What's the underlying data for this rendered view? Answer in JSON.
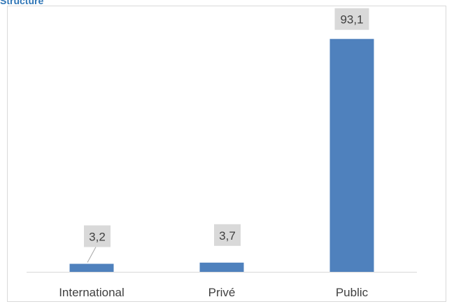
{
  "title": "Structure",
  "colors": {
    "title": "#2E75B6",
    "bar": "#4F81BD",
    "label_box": "#D9D9D9",
    "label_text": "#404040",
    "axis_line": "#D9D9D9",
    "tick_text": "#404040"
  },
  "chart_data": {
    "type": "bar",
    "categories": [
      "International",
      "Privé",
      "Public"
    ],
    "values": [
      3.2,
      3.7,
      93.1
    ],
    "data_labels": [
      "3,2",
      "3,7",
      "93,1"
    ],
    "title": "Structure",
    "xlabel": "",
    "ylabel": "",
    "ylim": [
      0,
      100
    ],
    "grid": false,
    "legend": "none"
  }
}
